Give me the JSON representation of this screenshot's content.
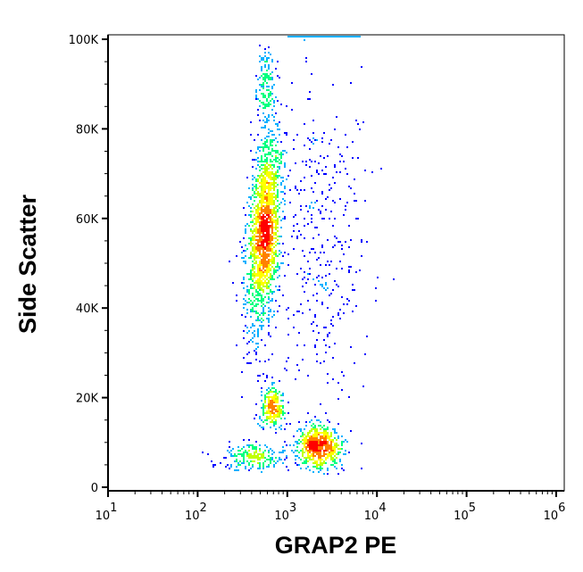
{
  "chart_data": {
    "type": "scatter",
    "subtype": "flow-cytometry pseudocolor density plot",
    "xlabel": "GRAP2 PE",
    "ylabel": "Side Scatter",
    "x_scale": "log",
    "xlim": [
      10,
      1000000
    ],
    "ylim": [
      0,
      100000
    ],
    "x_ticks": [
      {
        "base": "10",
        "exp": "1"
      },
      {
        "base": "10",
        "exp": "2"
      },
      {
        "base": "10",
        "exp": "3"
      },
      {
        "base": "10",
        "exp": "4"
      },
      {
        "base": "10",
        "exp": "5"
      },
      {
        "base": "10",
        "exp": "6"
      }
    ],
    "y_ticks": [
      "0",
      "20K",
      "40K",
      "60K",
      "80K",
      "100K"
    ],
    "y_tick_values": [
      0,
      20000,
      40000,
      60000,
      80000,
      100000
    ],
    "grid": false,
    "density_colors": [
      "#0000ff",
      "#00b0ff",
      "#00ff80",
      "#c0ff00",
      "#ffff00",
      "#ff8000",
      "#ff0000"
    ],
    "populations": [
      {
        "log10_x_center": 2.73,
        "log10_x_sd": 0.09,
        "y_center": 57000,
        "y_sd": 11000,
        "tilt_log10_per_10k": 0.03,
        "events": 1700
      },
      {
        "log10_x_center": 2.83,
        "log10_x_sd": 0.07,
        "y_center": 18000,
        "y_sd": 2500,
        "events": 260
      },
      {
        "log10_x_center": 3.35,
        "log10_x_sd": 0.13,
        "y_center": 9000,
        "y_sd": 2400,
        "events": 650
      },
      {
        "log10_x_center": 2.6,
        "log10_x_sd": 0.18,
        "y_center": 7000,
        "y_sd": 1500,
        "events": 220
      },
      {
        "log10_x_center": 3.35,
        "log10_x_sd": 0.25,
        "y_center": 55000,
        "y_sd": 20000,
        "events": 380
      },
      {
        "log10_x_center": 2.75,
        "log10_x_sd": 0.06,
        "y_center": 90000,
        "y_sd": 5000,
        "events": 150
      }
    ],
    "saturated_events": {
      "log10_x_range": [
        3.0,
        3.8
      ],
      "y": 100000
    }
  }
}
